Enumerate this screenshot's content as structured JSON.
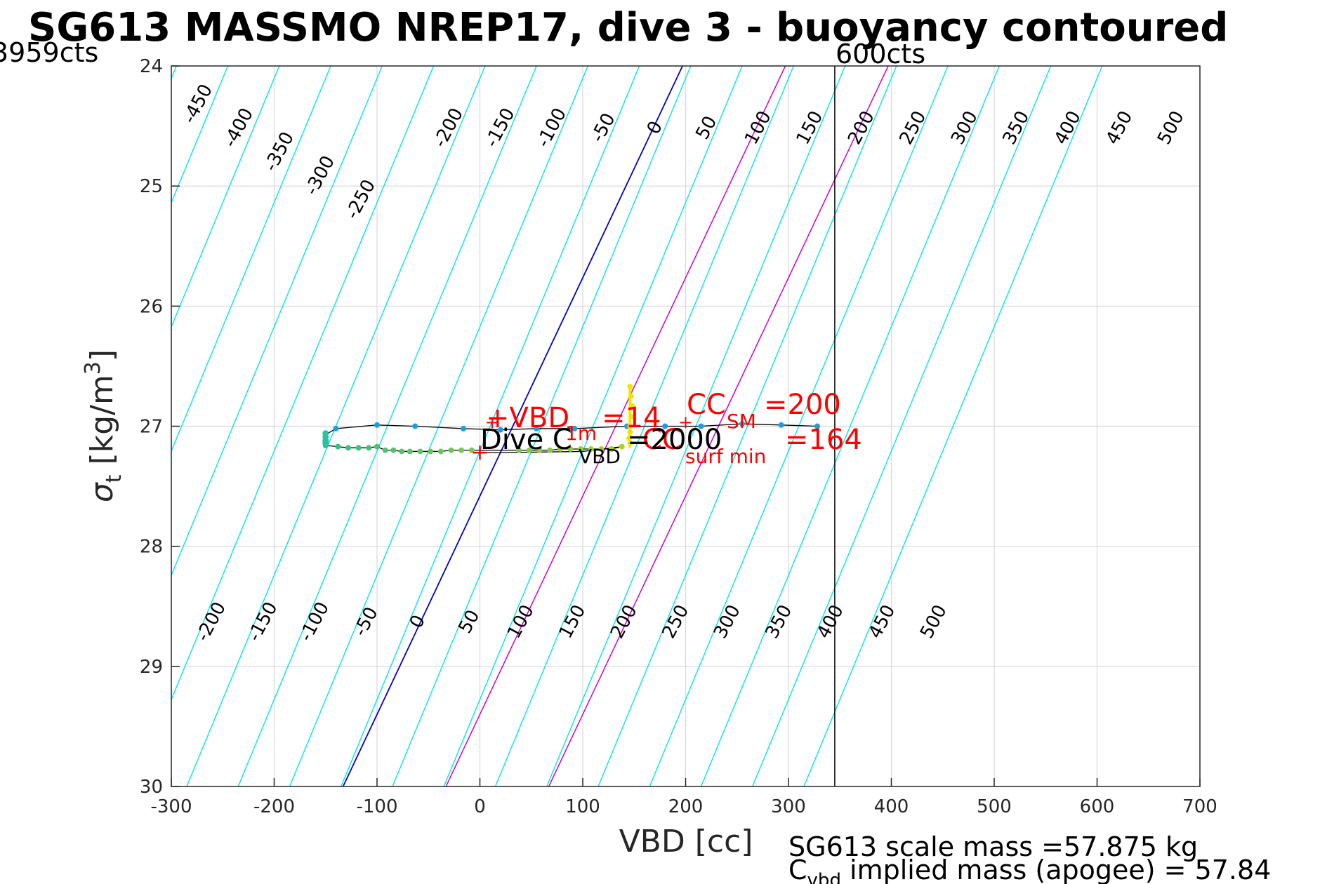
{
  "title": "SG613 MASSMO NREP17, dive 3 - buoyancy contoured",
  "corner_labels": {
    "left": "3959cts",
    "right": "600cts"
  },
  "colors": {
    "contour": "#00e5e5",
    "zero_contour": "#0000cc",
    "magenta_contour": "#cc00cc",
    "grid": "#d9d9d9",
    "annotation": "#ff0000",
    "trace": "#000000"
  },
  "chart_data": {
    "type": "line",
    "xlabel": "VBD [cc]",
    "ylabel": "σ_t [kg/m^3]",
    "xlim": [
      -300,
      700
    ],
    "ylim": [
      24,
      30
    ],
    "y_reversed": true,
    "grid": true,
    "xticks": [
      -300,
      -200,
      -100,
      0,
      100,
      200,
      300,
      400,
      500,
      600,
      700
    ],
    "yticks": [
      24,
      25,
      26,
      27,
      28,
      29,
      30
    ],
    "contours": {
      "top_labels": [
        "-450",
        "-400",
        "-350",
        "-300",
        "-250",
        "-200",
        "-150",
        "-100",
        "-50",
        "0",
        "50",
        "100",
        "150",
        "200",
        "250",
        "300",
        "350",
        "400",
        "450",
        "500"
      ],
      "bottom_labels": [
        "-200",
        "-150",
        "-100",
        "-50",
        "0",
        "50",
        "100",
        "150",
        "200",
        "250",
        "300",
        "350",
        "400",
        "450",
        "500"
      ],
      "line_values": [
        -500,
        -450,
        -400,
        -350,
        -300,
        -250,
        -200,
        -150,
        -100,
        -50,
        0,
        50,
        100,
        150,
        200,
        250,
        300,
        350,
        400,
        450,
        500,
        550,
        600
      ],
      "vbd_at_sigma24": [
        -495,
        -445,
        -395,
        -345,
        -295,
        -245,
        -195,
        -145,
        -95,
        -45,
        5,
        55,
        105,
        155,
        205,
        255,
        305,
        355,
        405,
        455,
        505,
        555,
        605
      ],
      "vbd_at_sigma30": [
        -785,
        -735,
        -685,
        -635,
        -585,
        -535,
        -485,
        -435,
        -385,
        -335,
        -285,
        -235,
        -185,
        -135,
        -85,
        -35,
        15,
        65,
        115,
        165,
        215,
        265,
        315
      ],
      "zero_vbd_at_sigma24": 197,
      "zero_vbd_at_sigma30": -133,
      "magenta_lines": [
        {
          "vbd_at_sigma24": 297,
          "vbd_at_sigma30": -33
        },
        {
          "vbd_at_sigma24": 397,
          "vbd_at_sigma30": 67
        }
      ]
    },
    "vertical_line_vbd": 345,
    "series": [
      {
        "points_upper": [
          [
            -140,
            27.02
          ],
          [
            -100,
            26.99
          ],
          [
            -63,
            27.0
          ],
          [
            -16,
            27.02
          ],
          [
            20,
            27.03
          ],
          [
            55,
            27.02
          ],
          [
            92,
            27.02
          ],
          [
            143,
            27.0
          ],
          [
            180,
            27.0
          ],
          [
            215,
            27.0
          ],
          [
            255,
            26.98
          ],
          [
            293,
            26.99
          ],
          [
            328,
            27.0
          ]
        ],
        "points_lower": [
          [
            -150,
            27.16
          ],
          [
            -138,
            27.17
          ],
          [
            -128,
            27.18
          ],
          [
            -118,
            27.18
          ],
          [
            -108,
            27.18
          ],
          [
            -100,
            27.17
          ],
          [
            -92,
            27.2
          ],
          [
            -84,
            27.2
          ],
          [
            -76,
            27.21
          ],
          [
            -68,
            27.21
          ],
          [
            -58,
            27.21
          ],
          [
            -48,
            27.21
          ],
          [
            -38,
            27.21
          ],
          [
            -28,
            27.2
          ],
          [
            -18,
            27.2
          ],
          [
            -8,
            27.2
          ],
          [
            38,
            27.2
          ],
          [
            48,
            27.2
          ],
          [
            58,
            27.2
          ],
          [
            68,
            27.2
          ],
          [
            78,
            27.19
          ],
          [
            88,
            27.19
          ],
          [
            98,
            27.19
          ],
          [
            108,
            27.19
          ],
          [
            118,
            27.19
          ],
          [
            128,
            27.19
          ],
          [
            138,
            27.17
          ]
        ],
        "points_yellow": [
          [
            146,
            26.67
          ],
          [
            147,
            26.75
          ],
          [
            148,
            26.83
          ],
          [
            147,
            26.92
          ],
          [
            146,
            27.0
          ],
          [
            146,
            27.05
          ],
          [
            145,
            27.1
          ],
          [
            146,
            27.14
          ]
        ],
        "markers_plus": [
          [
            12,
            26.97
          ],
          [
            200,
            26.97
          ]
        ],
        "markers_red_plus": [
          [
            0,
            27.22
          ]
        ]
      }
    ],
    "annotations": {
      "vbd_label": "+VBD",
      "vbd_sub": "1m",
      "vbd_value": "=14",
      "cc_label": "CC",
      "cc_sub": "SM",
      "cc_value": "=200",
      "surf_min_sub": "surf min",
      "surf_min_value": "=164",
      "dive_label": "Dive C",
      "dive_sub": "VBD",
      "dive_value": "=2000",
      "overlap_text": "CC"
    }
  },
  "footer": {
    "line1": "SG613 scale mass =57.875 kg",
    "line2_prefix": "C",
    "line2_sub": "vbd",
    "line2_rest": " implied mass (apogee) = 57.84"
  }
}
